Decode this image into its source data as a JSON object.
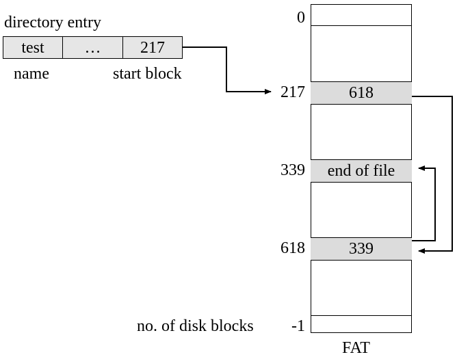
{
  "directory_entry": {
    "title": "directory entry",
    "cells": [
      "test",
      "…",
      "217"
    ],
    "name_label": "name",
    "start_block_label": "start block"
  },
  "fat": {
    "caption": "FAT",
    "index_first": "0",
    "index_last": "-1",
    "last_row_label": "no. of disk blocks",
    "entries": [
      {
        "index": "217",
        "value": "618"
      },
      {
        "index": "339",
        "value": "end of file"
      },
      {
        "index": "618",
        "value": "339"
      }
    ]
  },
  "colors": {
    "line": "#000000",
    "cell_fill": "#e6e6e6",
    "fat_fill": "#dcdcdc"
  }
}
